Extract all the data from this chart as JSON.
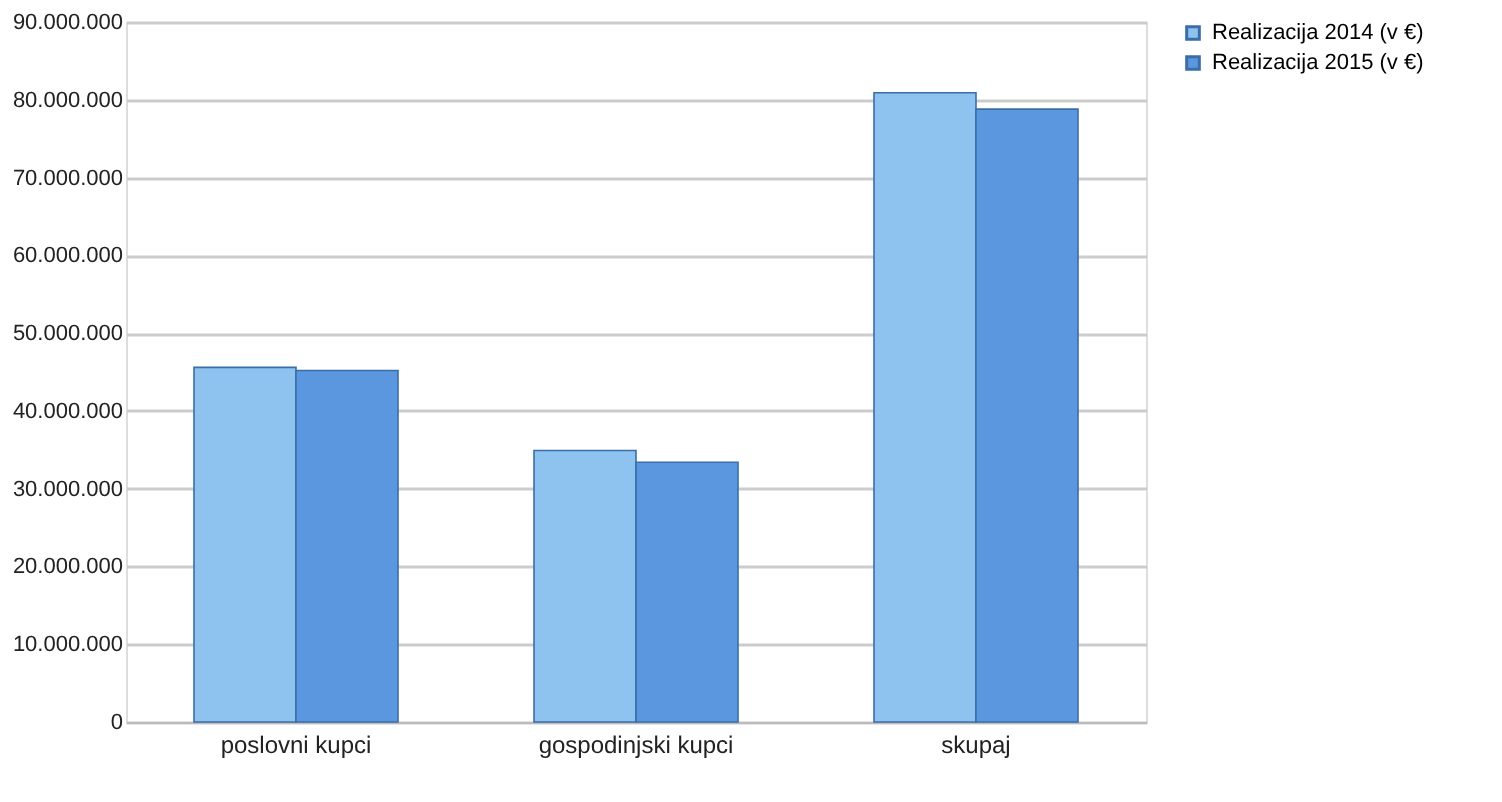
{
  "chart_data": {
    "type": "bar",
    "categories": [
      "poslovni kupci",
      "gospodinjski kupci",
      "skupaj"
    ],
    "series": [
      {
        "name": "Realizacija 2014 (v €)",
        "color": "#8ec3f0",
        "values": [
          45600000,
          34900000,
          80900000
        ]
      },
      {
        "name": "Realizacija 2015 (v €)",
        "color": "#5b97de",
        "values": [
          45200000,
          33400000,
          78800000
        ]
      }
    ],
    "ylim": [
      0,
      90000000
    ],
    "yticks": [
      {
        "value": 0,
        "label": "0"
      },
      {
        "value": 10000000,
        "label": "10.000.000"
      },
      {
        "value": 20000000,
        "label": "20.000.000"
      },
      {
        "value": 30000000,
        "label": "30.000.000"
      },
      {
        "value": 40000000,
        "label": "40.000.000"
      },
      {
        "value": 50000000,
        "label": "50.000.000"
      },
      {
        "value": 60000000,
        "label": "60.000.000"
      },
      {
        "value": 70000000,
        "label": "70.000.000"
      },
      {
        "value": 80000000,
        "label": "80.000.000"
      },
      {
        "value": 90000000,
        "label": "90.000.000"
      }
    ],
    "grid": "y",
    "legend": "right"
  }
}
